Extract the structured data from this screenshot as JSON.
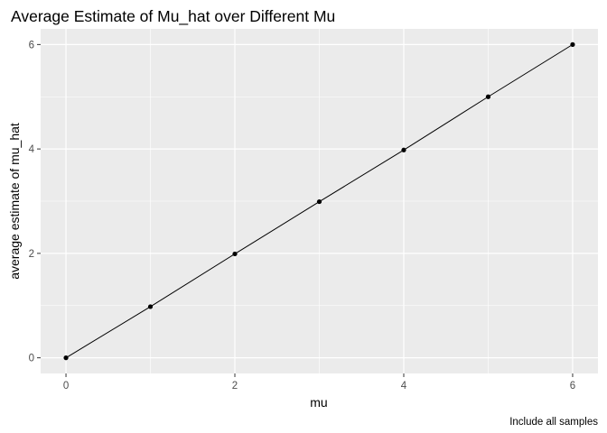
{
  "chart_data": {
    "type": "line",
    "title": "Average Estimate of Mu_hat over Different Mu",
    "xlabel": "mu",
    "ylabel": "average estimate of mu_hat",
    "caption": "Include all samples",
    "x": [
      0,
      1,
      2,
      3,
      4,
      5,
      6
    ],
    "series": [
      {
        "values": [
          0.0,
          0.98,
          1.99,
          2.99,
          3.98,
          5.0,
          6.0
        ]
      }
    ],
    "xlim": [
      -0.3,
      6.3
    ],
    "ylim": [
      -0.3,
      6.3
    ],
    "x_ticks": [
      "0",
      "2",
      "4",
      "6"
    ],
    "y_ticks": [
      "0",
      "2",
      "4",
      "6"
    ],
    "grid": true,
    "legend": "none",
    "colors": {
      "panel": "#ebebeb",
      "grid": "#ffffff",
      "line": "#000000",
      "point": "#000000"
    }
  }
}
